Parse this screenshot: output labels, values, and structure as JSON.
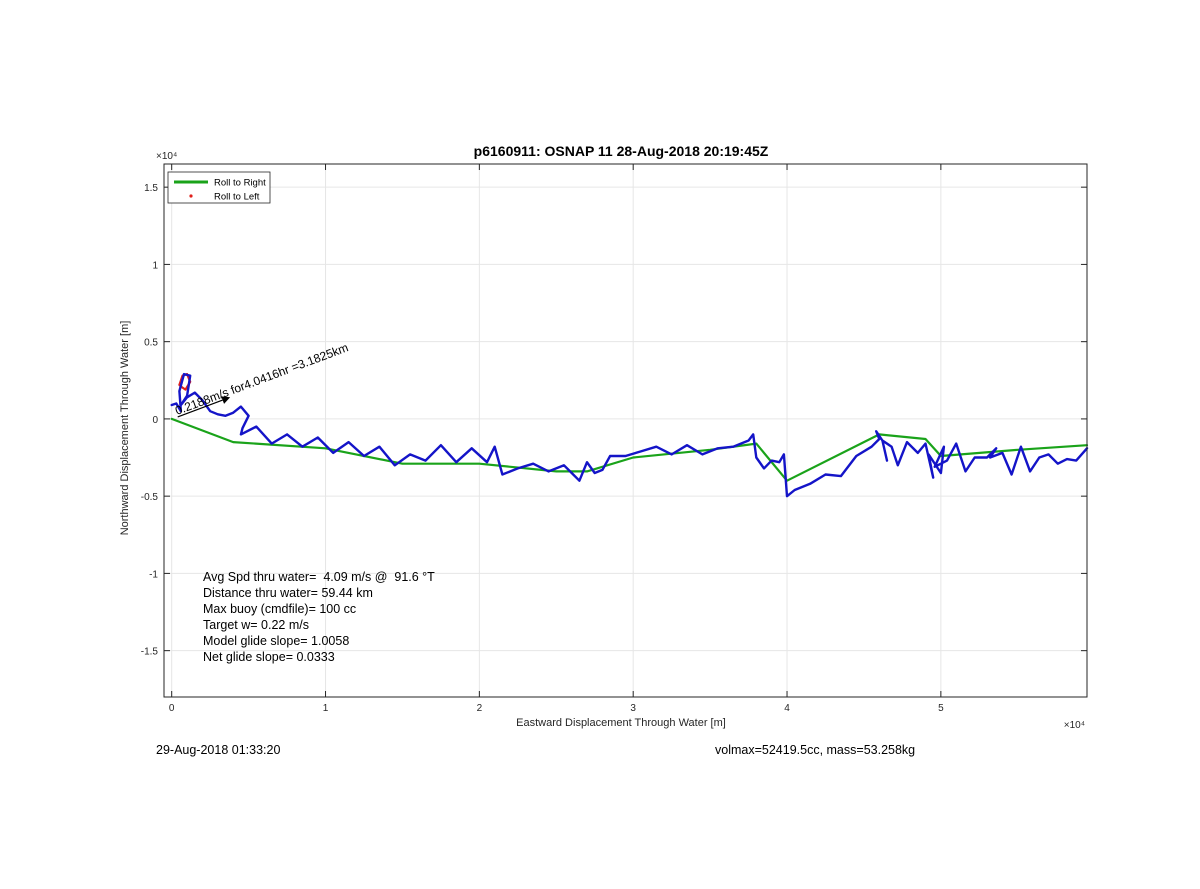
{
  "chart_data": {
    "type": "line",
    "title": "p6160911: OSNAP 11 28-Aug-2018 20:19:45Z",
    "xlabel": "Eastward Displacement Through Water [m]",
    "ylabel": "Northward Displacement Through Water [m]",
    "x_multiplier": "×10⁴",
    "y_multiplier": "×10⁴",
    "xlim": [
      -500,
      59500
    ],
    "ylim": [
      -18000,
      16500
    ],
    "x_ticks": [
      0,
      10000,
      20000,
      30000,
      40000,
      50000
    ],
    "x_tick_labels": [
      "0",
      "1",
      "2",
      "3",
      "4",
      "5"
    ],
    "y_ticks": [
      -15000,
      -10000,
      -5000,
      0,
      5000,
      10000,
      15000
    ],
    "y_tick_labels": [
      "-1.5",
      "-1",
      "-0.5",
      "0",
      "0.5",
      "1",
      "1.5"
    ],
    "grid": true,
    "legend_position": "top-left",
    "legend": [
      {
        "label": "Roll to Right",
        "color": "#1aa31a",
        "style": "line"
      },
      {
        "label": "Roll to Left",
        "color": "#e0201b",
        "style": "point"
      }
    ],
    "series": [
      {
        "name": "Roll to Right",
        "color": "#1aa31a",
        "x": [
          0,
          4000,
          10000,
          15000,
          20000,
          25000,
          27000,
          30000,
          35000,
          38000,
          40000,
          46000,
          49000,
          50000,
          55000,
          59500
        ],
        "y": [
          0,
          -1500,
          -1900,
          -2900,
          -2900,
          -3400,
          -3400,
          -2500,
          -2000,
          -1600,
          -4000,
          -1000,
          -1300,
          -2400,
          -2000,
          -1700
        ]
      },
      {
        "name": "Roll to Left",
        "color": "#e0201b",
        "x": [
          500,
          700,
          1000,
          1200,
          900,
          600,
          500
        ],
        "y": [
          2200,
          2800,
          2900,
          2400,
          1900,
          2100,
          2200
        ]
      },
      {
        "color": "#1414c8",
        "x": [
          0,
          300,
          600,
          500,
          800,
          1200,
          1000,
          600,
          1000,
          1500,
          2000,
          2500,
          3000,
          3500,
          4000,
          4500,
          5000,
          4600,
          4500,
          5500,
          6500,
          7500,
          8500,
          9500,
          10500,
          11500,
          12500,
          13500,
          14500,
          15500,
          16500,
          17500,
          18500,
          19500,
          20500,
          21000,
          21500,
          22500,
          23500,
          24500,
          25500,
          26000,
          26500,
          27000,
          27500,
          28000,
          28500,
          29500,
          30500,
          31500,
          32500,
          33500,
          34500,
          35500,
          36500,
          37500,
          37800,
          38000,
          38500,
          39000,
          39500,
          39800,
          40000,
          40500,
          41500,
          42500,
          43500,
          44500,
          45500,
          46000,
          45800,
          46200,
          46500,
          46200,
          46800,
          47200,
          47800,
          48500,
          49000,
          49500,
          49200,
          50000,
          50200,
          49600,
          50400,
          51000,
          51600,
          52200,
          53000,
          53600,
          53200,
          54000,
          54600,
          55200,
          55800,
          56400,
          57000,
          57600,
          58200,
          58800,
          59500
        ],
        "y": [
          900,
          1000,
          500,
          1800,
          2900,
          2800,
          1500,
          900,
          1400,
          1700,
          1200,
          500,
          300,
          200,
          400,
          800,
          200,
          -600,
          -1000,
          -500,
          -1600,
          -1000,
          -1800,
          -1200,
          -2200,
          -1500,
          -2400,
          -1800,
          -3000,
          -2300,
          -2700,
          -1700,
          -2800,
          -1900,
          -2800,
          -1800,
          -3600,
          -3200,
          -2900,
          -3400,
          -3000,
          -3500,
          -4000,
          -2800,
          -3500,
          -3300,
          -2400,
          -2400,
          -2100,
          -1800,
          -2300,
          -1700,
          -2300,
          -1900,
          -1800,
          -1400,
          -1000,
          -2500,
          -3200,
          -2700,
          -2800,
          -2300,
          -5000,
          -4600,
          -4200,
          -3600,
          -3700,
          -2400,
          -1800,
          -1300,
          -800,
          -1400,
          -2700,
          -1400,
          -1800,
          -3000,
          -1500,
          -2200,
          -1600,
          -3800,
          -2300,
          -3500,
          -1800,
          -3100,
          -2700,
          -1600,
          -3400,
          -2500,
          -2500,
          -1900,
          -2500,
          -2200,
          -3600,
          -1800,
          -3400,
          -2500,
          -2300,
          -2900,
          -2600,
          -2700,
          -1900
        ]
      }
    ],
    "annotations": [
      {
        "text": "Avg Spd thru water=  4.09 m/s @  91.6 °T"
      },
      {
        "text": "Distance thru water= 59.44 km"
      },
      {
        "text": "Max buoy (cmdfile)= 100 cc"
      },
      {
        "text": "Target w= 0.22 m/s"
      },
      {
        "text": "Model glide slope= 1.0058"
      },
      {
        "text": "Net glide slope= 0.0333"
      }
    ],
    "arrow_label": "0.2188m/s for4.0416hr =3.1825km",
    "footer_left": "29-Aug-2018 01:33:20",
    "footer_right": "volmax=52419.5cc, mass=53.258kg"
  }
}
